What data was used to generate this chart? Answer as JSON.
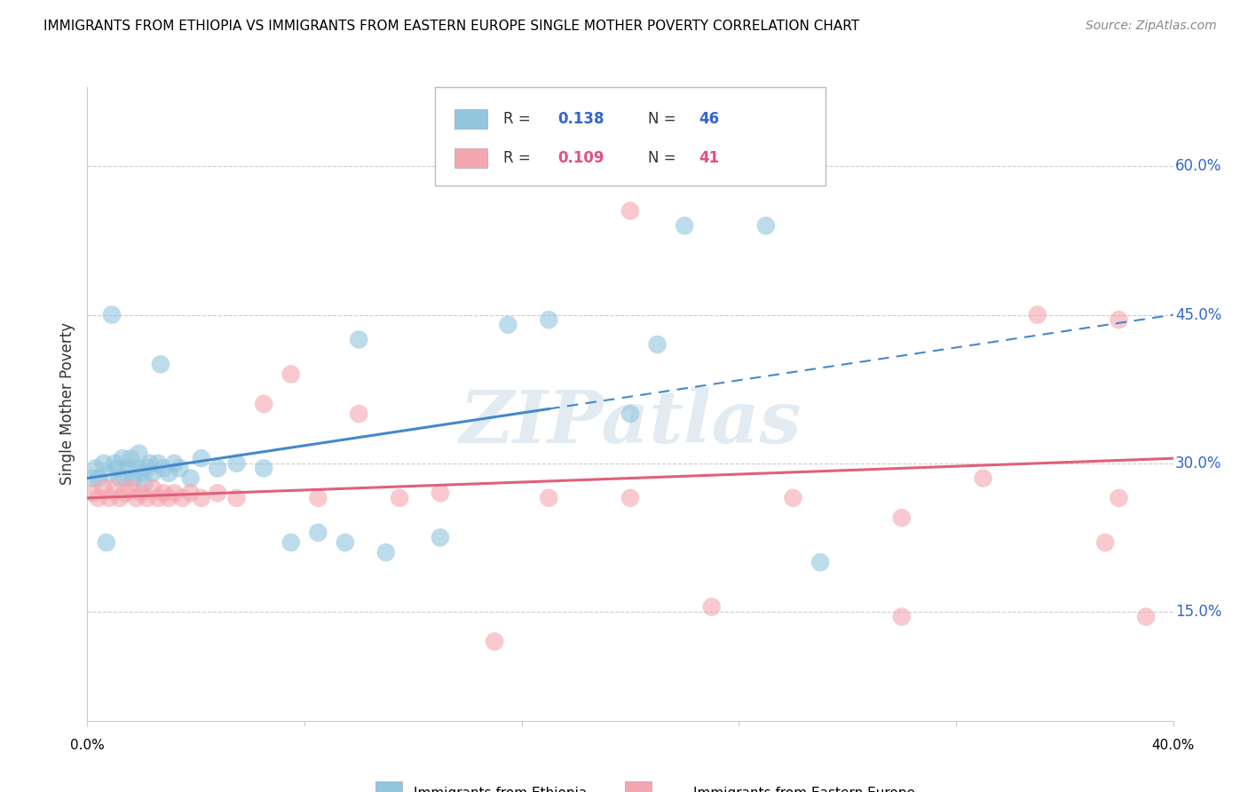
{
  "title": "IMMIGRANTS FROM ETHIOPIA VS IMMIGRANTS FROM EASTERN EUROPE SINGLE MOTHER POVERTY CORRELATION CHART",
  "source": "Source: ZipAtlas.com",
  "ylabel": "Single Mother Poverty",
  "ytick_labels": [
    "15.0%",
    "30.0%",
    "45.0%",
    "60.0%"
  ],
  "ytick_values": [
    0.15,
    0.3,
    0.45,
    0.6
  ],
  "xlim": [
    0.0,
    0.4
  ],
  "ylim": [
    0.04,
    0.68
  ],
  "color_ethiopia": "#92c5de",
  "color_eastern_europe": "#f4a6b0",
  "color_eth_line": "#4488cc",
  "color_ee_line": "#e0607a",
  "label_ethiopia": "Immigrants from Ethiopia",
  "label_eastern_europe": "Immigrants from Eastern Europe",
  "watermark": "ZIPatlas",
  "background_color": "#ffffff",
  "grid_color": "#cccccc",
  "ethiopia_x": [
    0.002,
    0.004,
    0.006,
    0.007,
    0.008,
    0.01,
    0.011,
    0.012,
    0.013,
    0.014,
    0.015,
    0.016,
    0.017,
    0.018,
    0.019,
    0.02,
    0.021,
    0.022,
    0.023,
    0.024,
    0.026,
    0.028,
    0.03,
    0.032,
    0.034,
    0.038,
    0.042,
    0.048,
    0.055,
    0.065,
    0.075,
    0.085,
    0.095,
    0.1,
    0.11,
    0.13,
    0.155,
    0.17,
    0.2,
    0.21,
    0.22,
    0.25,
    0.27,
    0.003,
    0.009,
    0.027
  ],
  "ethiopia_y": [
    0.285,
    0.285,
    0.3,
    0.22,
    0.29,
    0.3,
    0.295,
    0.285,
    0.305,
    0.285,
    0.295,
    0.305,
    0.285,
    0.295,
    0.31,
    0.29,
    0.28,
    0.295,
    0.3,
    0.29,
    0.3,
    0.295,
    0.29,
    0.3,
    0.295,
    0.285,
    0.305,
    0.295,
    0.3,
    0.295,
    0.22,
    0.23,
    0.22,
    0.425,
    0.21,
    0.225,
    0.44,
    0.445,
    0.35,
    0.42,
    0.54,
    0.54,
    0.2,
    0.295,
    0.45,
    0.4
  ],
  "eastern_europe_x": [
    0.002,
    0.004,
    0.006,
    0.008,
    0.01,
    0.012,
    0.014,
    0.016,
    0.018,
    0.02,
    0.022,
    0.024,
    0.026,
    0.028,
    0.03,
    0.032,
    0.035,
    0.038,
    0.042,
    0.048,
    0.055,
    0.065,
    0.075,
    0.085,
    0.1,
    0.115,
    0.13,
    0.15,
    0.17,
    0.2,
    0.23,
    0.26,
    0.3,
    0.33,
    0.35,
    0.375,
    0.38,
    0.39,
    0.3,
    0.2,
    0.38
  ],
  "eastern_europe_y": [
    0.27,
    0.265,
    0.275,
    0.265,
    0.275,
    0.265,
    0.27,
    0.275,
    0.265,
    0.27,
    0.265,
    0.275,
    0.265,
    0.27,
    0.265,
    0.27,
    0.265,
    0.27,
    0.265,
    0.27,
    0.265,
    0.36,
    0.39,
    0.265,
    0.35,
    0.265,
    0.27,
    0.12,
    0.265,
    0.265,
    0.155,
    0.265,
    0.245,
    0.285,
    0.45,
    0.22,
    0.265,
    0.145,
    0.145,
    0.555,
    0.445
  ],
  "eth_trendline_x0": 0.0,
  "eth_trendline_x1": 0.17,
  "eth_trendline_x2": 0.4,
  "eth_trendline_y0": 0.285,
  "eth_trendline_y1": 0.355,
  "eth_trendline_y2": 0.45,
  "ee_trendline_x0": 0.0,
  "ee_trendline_x1": 0.4,
  "ee_trendline_y0": 0.265,
  "ee_trendline_y1": 0.305
}
